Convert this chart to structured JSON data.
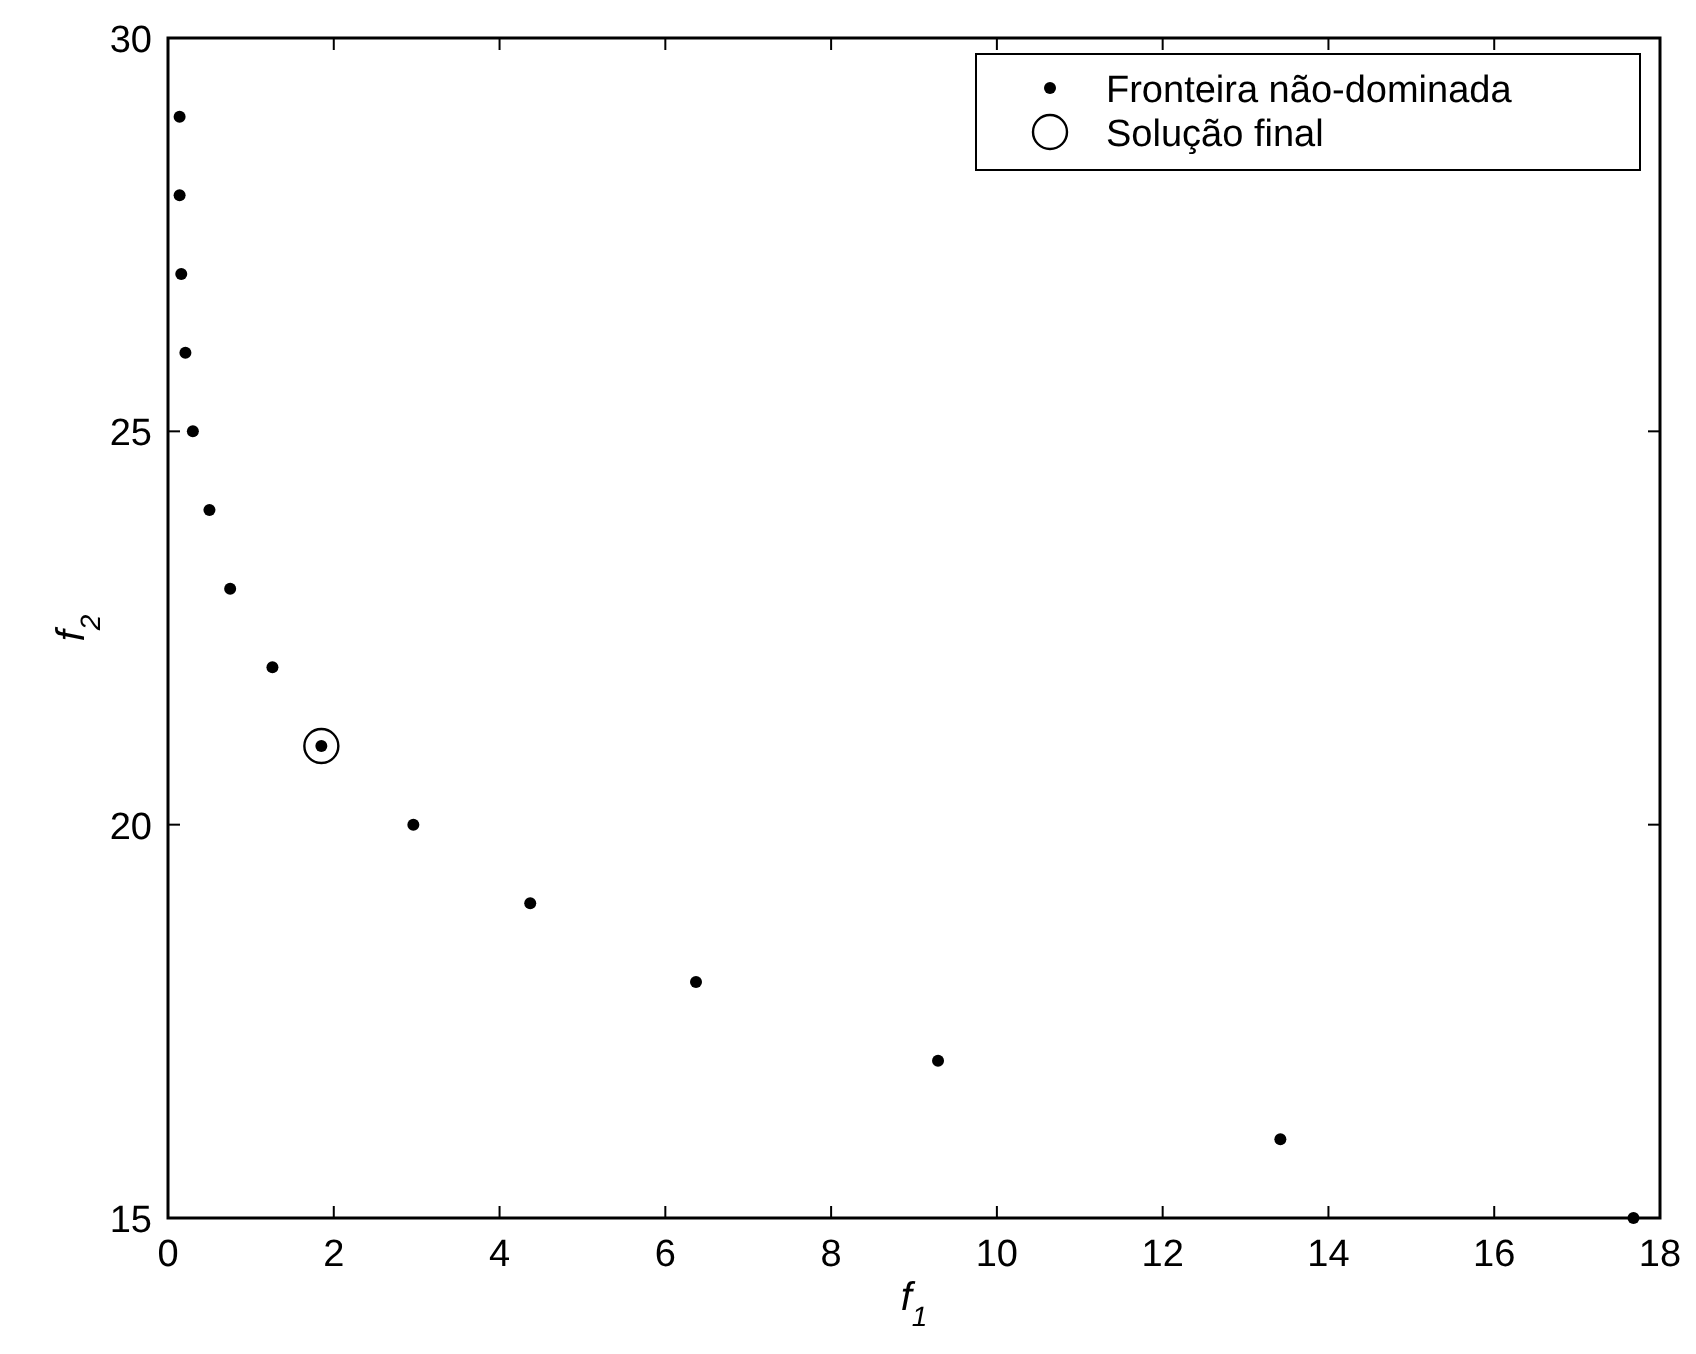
{
  "chart_data": {
    "type": "scatter",
    "xlabel": "f$_{1}$",
    "ylabel": "f$_{2}$",
    "xlim": [
      0,
      18
    ],
    "ylim": [
      15,
      30
    ],
    "xticks": [
      0,
      2,
      4,
      6,
      8,
      10,
      12,
      14,
      16,
      18
    ],
    "yticks": [
      15,
      20,
      25,
      30
    ],
    "grid": false,
    "legend": "top right",
    "series": [
      {
        "name": "Fronteira não-dominada",
        "color": "#000000",
        "marker": "circle",
        "x": [
          0.14,
          0.14,
          0.16,
          0.21,
          0.3,
          0.5,
          0.75,
          1.26,
          1.85,
          2.96,
          4.37,
          6.37,
          9.29,
          13.42,
          17.68
        ],
        "values": [
          29,
          28,
          27,
          26,
          25,
          24,
          23,
          22,
          21,
          20,
          19,
          18,
          17,
          16,
          15
        ]
      },
      {
        "name": "Solução final",
        "color": "#000000",
        "marker": "open-circle",
        "x": [
          1.85
        ],
        "values": [
          21
        ]
      }
    ]
  }
}
